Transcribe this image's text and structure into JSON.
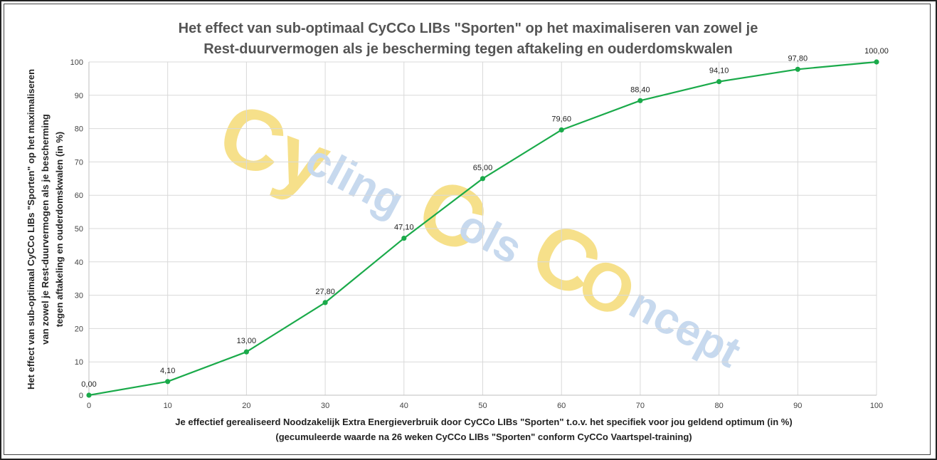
{
  "chart_data": {
    "type": "line",
    "title_lines": [
      "Het effect van sub-optimaal CyCCo LIBs \"Sporten\" op het maximaliseren van zowel je",
      "Rest-duurvermogen als je bescherming tegen aftakeling en ouderdomskwalen"
    ],
    "xlabel_lines": [
      "Je effectief gerealiseerd Noodzakelijk Extra Energieverbruik door CyCCo LIBs \"Sporten\" t.o.v. het specifiek voor jou geldend optimum (in %)",
      "(gecumuleerde waarde na 26 weken CyCCo LIBs \"Sporten\" conform CyCCo Vaartspel-training)"
    ],
    "ylabel_lines": [
      "Het effect van sub-optimaal CyCCo LIBs \"Sporten\" op het maximaliseren",
      "van zowel je Rest-duurvermogen als je bescherming",
      "tegen aftakeling en ouderdomskwalen (in %)"
    ],
    "x": [
      0,
      10,
      20,
      30,
      40,
      50,
      60,
      70,
      80,
      90,
      100
    ],
    "y": [
      0,
      4.1,
      13.0,
      27.8,
      47.1,
      65.0,
      79.6,
      88.4,
      94.1,
      97.8,
      100.0
    ],
    "data_labels": [
      "0,00",
      "4,10",
      "13,00",
      "27,80",
      "47,10",
      "65,00",
      "79,60",
      "88,40",
      "94,10",
      "97,80",
      "100,00"
    ],
    "xticks": [
      "0",
      "10",
      "20",
      "30",
      "40",
      "50",
      "60",
      "70",
      "80",
      "90",
      "100"
    ],
    "yticks": [
      "0",
      "10",
      "20",
      "30",
      "40",
      "50",
      "60",
      "70",
      "80",
      "90",
      "100"
    ],
    "xlim": [
      0,
      100
    ],
    "ylim": [
      0,
      100
    ],
    "grid": true,
    "line_color": "#1aaa4a"
  },
  "watermark": {
    "cy": "Cy",
    "cling": "cling",
    "c1": "C",
    "ols": "ols",
    "c2": "C",
    "o": "O",
    "ncept": "ncept"
  }
}
